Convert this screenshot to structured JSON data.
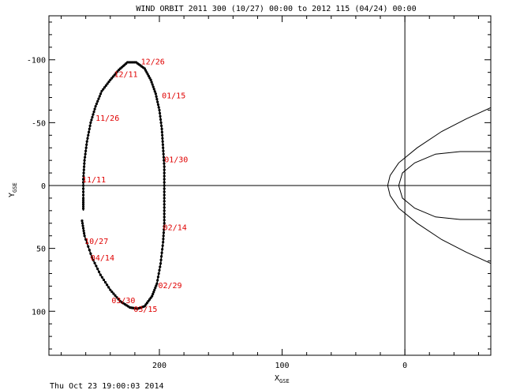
{
  "chart_data": {
    "type": "scatter",
    "title": "WIND ORBIT 2011 300 (10/27) 00:00 to 2012 115 (04/24) 00:00",
    "xlabel": "X",
    "xlabel_sub": "GSE",
    "ylabel": "Y",
    "ylabel_sub": "GSE",
    "xlim": [
      290,
      -70
    ],
    "ylim": [
      -135,
      135
    ],
    "y_reversed": true,
    "x_reversed": true,
    "x_ticks": [
      {
        "v": 200,
        "label": "200"
      },
      {
        "v": 100,
        "label": "100"
      },
      {
        "v": 0,
        "label": "0"
      }
    ],
    "y_ticks": [
      {
        "v": -100,
        "label": "-100"
      },
      {
        "v": -50,
        "label": "-50"
      },
      {
        "v": 0,
        "label": "0"
      },
      {
        "v": 50,
        "label": "50"
      },
      {
        "v": 100,
        "label": "100"
      }
    ],
    "orbit": {
      "name": "WIND",
      "color": "#000000",
      "points": [
        [
          263,
          28
        ],
        [
          261,
          40
        ],
        [
          255,
          57
        ],
        [
          248,
          71
        ],
        [
          240,
          83
        ],
        [
          232,
          92
        ],
        [
          224,
          97
        ],
        [
          218,
          98
        ],
        [
          212,
          96
        ],
        [
          206,
          88
        ],
        [
          202,
          78
        ],
        [
          199,
          62
        ],
        [
          197,
          45
        ],
        [
          196,
          30
        ],
        [
          196,
          15
        ],
        [
          196,
          0
        ],
        [
          196,
          -15
        ],
        [
          197,
          -30
        ],
        [
          198,
          -45
        ],
        [
          200,
          -60
        ],
        [
          203,
          -73
        ],
        [
          207,
          -84
        ],
        [
          212,
          -93
        ],
        [
          219,
          -98
        ],
        [
          226,
          -98
        ],
        [
          233,
          -92
        ],
        [
          240,
          -84
        ],
        [
          247,
          -75
        ],
        [
          252,
          -63
        ],
        [
          256,
          -50
        ],
        [
          259,
          -35
        ],
        [
          261,
          -20
        ],
        [
          262,
          -5
        ],
        [
          262,
          10
        ],
        [
          262,
          20
        ]
      ]
    },
    "date_labels": [
      {
        "text": "12/26",
        "x": 215,
        "y": -99
      },
      {
        "text": "12/11",
        "x": 237,
        "y": -89
      },
      {
        "text": "01/15",
        "x": 198,
        "y": -72
      },
      {
        "text": "11/26",
        "x": 252,
        "y": -54
      },
      {
        "text": "01/30",
        "x": 196,
        "y": -21
      },
      {
        "text": "11/11",
        "x": 263,
        "y": -5
      },
      {
        "text": "02/14",
        "x": 197,
        "y": 33
      },
      {
        "text": "10/27",
        "x": 261,
        "y": 44
      },
      {
        "text": "04/14",
        "x": 256,
        "y": 57
      },
      {
        "text": "02/29",
        "x": 201,
        "y": 79
      },
      {
        "text": "03/30",
        "x": 239,
        "y": 91
      },
      {
        "text": "03/15",
        "x": 221,
        "y": 98
      }
    ],
    "label_color": "#e00000",
    "boundaries": [
      {
        "name": "bow-shock",
        "color": "#000000",
        "points": [
          [
            -70,
            -62
          ],
          [
            -50,
            -53
          ],
          [
            -30,
            -43
          ],
          [
            -10,
            -30
          ],
          [
            5,
            -18
          ],
          [
            12,
            -8
          ],
          [
            14,
            0
          ],
          [
            12,
            8
          ],
          [
            5,
            18
          ],
          [
            -10,
            30
          ],
          [
            -30,
            43
          ],
          [
            -50,
            53
          ],
          [
            -70,
            62
          ]
        ]
      },
      {
        "name": "magnetopause",
        "color": "#000000",
        "points": [
          [
            -70,
            -27
          ],
          [
            -45,
            -27
          ],
          [
            -25,
            -25
          ],
          [
            -8,
            -18
          ],
          [
            2,
            -10
          ],
          [
            5,
            0
          ],
          [
            2,
            10
          ],
          [
            -8,
            18
          ],
          [
            -25,
            25
          ],
          [
            -45,
            27
          ],
          [
            -70,
            27
          ]
        ]
      }
    ],
    "grid": false,
    "footer": "Thu Oct 23 19:00:03 2014"
  }
}
